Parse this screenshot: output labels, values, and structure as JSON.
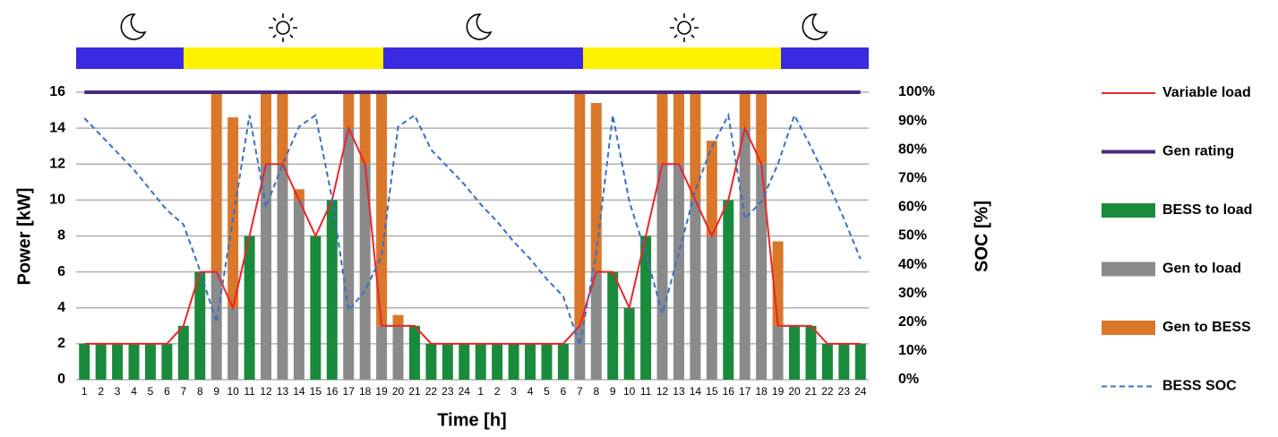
{
  "chart_data": {
    "type": "bar",
    "x_label": "Time [h]",
    "y_label": "Power [kW]",
    "y2_label": "SOC [%]",
    "categories": [
      "1",
      "2",
      "3",
      "4",
      "5",
      "6",
      "7",
      "8",
      "9",
      "10",
      "11",
      "12",
      "13",
      "14",
      "15",
      "16",
      "17",
      "18",
      "19",
      "20",
      "21",
      "22",
      "23",
      "24",
      "1",
      "2",
      "3",
      "4",
      "5",
      "6",
      "7",
      "8",
      "9",
      "10",
      "11",
      "12",
      "13",
      "14",
      "15",
      "16",
      "17",
      "18",
      "19",
      "20",
      "21",
      "22",
      "23",
      "24"
    ],
    "ylim": [
      0,
      16
    ],
    "yticks": [
      0,
      2,
      4,
      6,
      8,
      10,
      12,
      14,
      16
    ],
    "y2lim": [
      0,
      100
    ],
    "y2ticks": [
      {
        "value": 0,
        "label": "0%"
      },
      {
        "value": 10,
        "label": "10%"
      },
      {
        "value": 20,
        "label": "20%"
      },
      {
        "value": 30,
        "label": "30%"
      },
      {
        "value": 40,
        "label": "40%"
      },
      {
        "value": 50,
        "label": "50%"
      },
      {
        "value": 60,
        "label": "60%"
      },
      {
        "value": 70,
        "label": "70%"
      },
      {
        "value": 80,
        "label": "80%"
      },
      {
        "value": 90,
        "label": "90%"
      },
      {
        "value": 100,
        "label": "100%"
      }
    ],
    "grid": true,
    "legend": "right",
    "series": [
      {
        "name": "Variable load",
        "type": "line",
        "color": "#e8262b",
        "values": [
          2,
          2,
          2,
          2,
          2,
          2,
          3,
          6,
          6,
          4,
          8,
          12,
          12,
          10,
          8,
          10,
          14,
          12,
          3,
          3,
          3,
          2,
          2,
          2,
          2,
          2,
          2,
          2,
          2,
          2,
          3,
          6,
          6,
          4,
          8,
          12,
          12,
          10,
          8,
          10,
          14,
          12,
          3,
          3,
          3,
          2,
          2,
          2
        ]
      },
      {
        "name": "Gen rating",
        "type": "line",
        "color": "#4b2a82",
        "values": [
          16,
          16,
          16,
          16,
          16,
          16,
          16,
          16,
          16,
          16,
          16,
          16,
          16,
          16,
          16,
          16,
          16,
          16,
          16,
          16,
          16,
          16,
          16,
          16,
          16,
          16,
          16,
          16,
          16,
          16,
          16,
          16,
          16,
          16,
          16,
          16,
          16,
          16,
          16,
          16,
          16,
          16,
          16,
          16,
          16,
          16,
          16,
          16
        ]
      },
      {
        "name": "BESS to load",
        "type": "bar",
        "color": "#1a8a3c",
        "values": [
          2,
          2,
          2,
          2,
          2,
          2,
          3,
          6,
          0,
          0,
          8,
          0,
          0,
          0,
          8,
          10,
          0,
          0,
          0,
          0,
          3,
          2,
          2,
          2,
          2,
          2,
          2,
          2,
          2,
          2,
          0,
          0,
          6,
          4,
          8,
          0,
          0,
          0,
          0,
          10,
          0,
          0,
          0,
          3,
          3,
          2,
          2,
          2
        ]
      },
      {
        "name": "Gen to load",
        "type": "bar",
        "color": "#8a8a8a",
        "values": [
          0,
          0,
          0,
          0,
          0,
          0,
          0,
          0,
          6,
          4,
          0,
          12,
          12,
          10,
          0,
          0,
          14,
          12,
          3,
          3,
          0,
          0,
          0,
          0,
          0,
          0,
          0,
          0,
          0,
          0,
          3,
          6,
          0,
          0,
          0,
          12,
          12,
          10,
          8,
          0,
          14,
          12,
          3,
          0,
          0,
          0,
          0,
          0
        ]
      },
      {
        "name": "Gen to BESS",
        "type": "bar",
        "color": "#d9772b",
        "values": [
          0,
          0,
          0,
          0,
          0,
          0,
          0,
          0,
          10,
          10.6,
          0,
          4,
          4,
          0.6,
          0,
          0,
          2,
          4,
          13,
          0.6,
          0,
          0,
          0,
          0,
          0,
          0,
          0,
          0,
          0,
          0,
          13,
          9.4,
          0,
          0,
          0,
          4,
          4,
          6,
          5.3,
          0,
          2,
          4,
          4.7,
          0,
          0,
          0,
          0,
          0
        ]
      },
      {
        "name": "BESS SOC",
        "type": "line",
        "dash": true,
        "axis": "y2",
        "color": "#3a6fc4",
        "values": [
          91,
          85,
          79,
          73,
          66,
          59,
          54,
          38,
          20,
          56,
          92,
          60,
          75,
          88,
          92,
          63,
          24,
          31,
          43,
          88,
          92,
          80,
          74,
          68,
          61,
          55,
          48,
          42,
          35,
          29,
          12,
          44,
          92,
          62,
          44,
          23,
          44,
          66,
          81,
          92,
          56,
          62,
          75,
          92,
          81,
          69,
          56,
          42
        ]
      }
    ]
  }
}
